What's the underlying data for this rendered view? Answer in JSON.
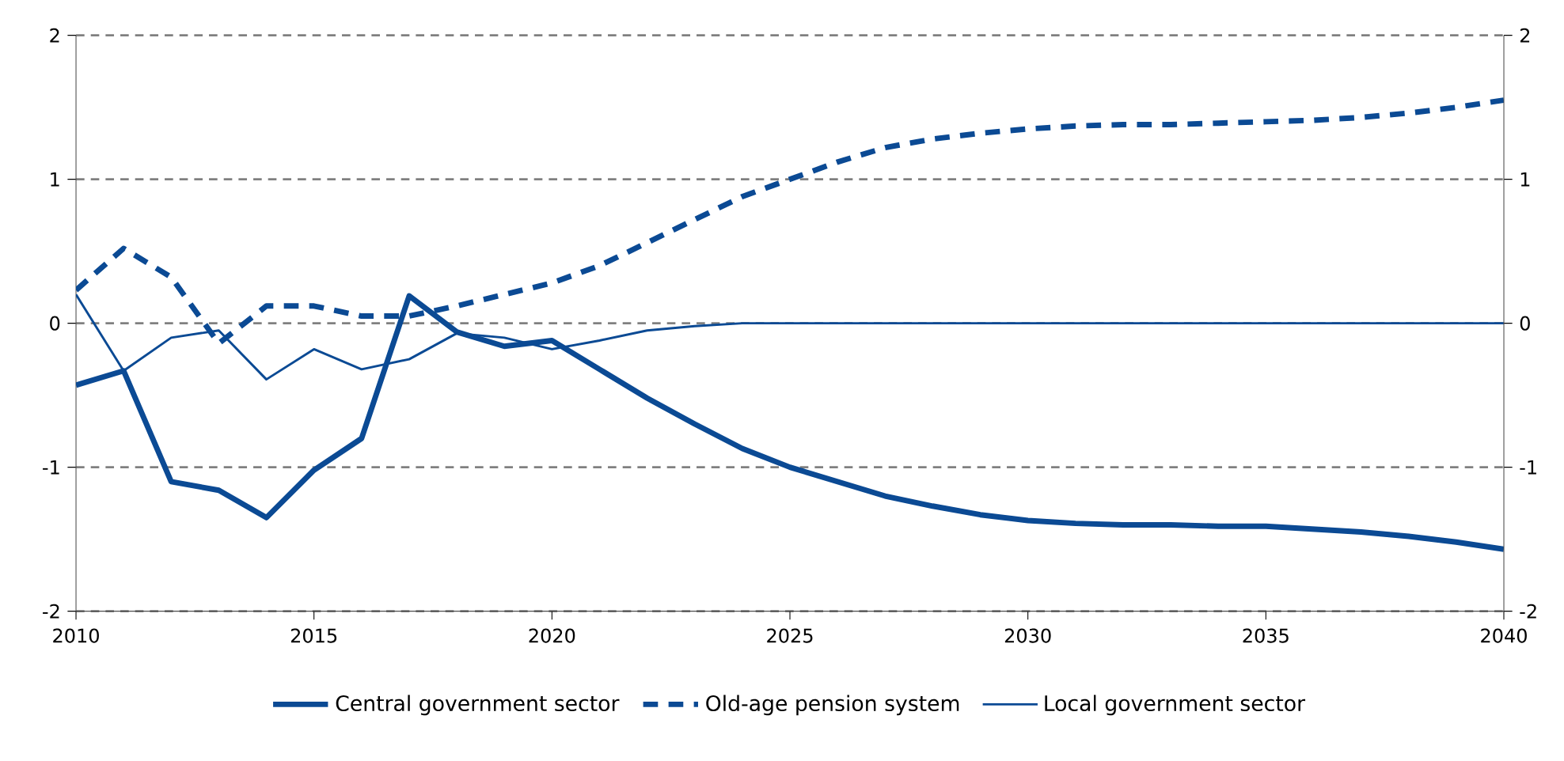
{
  "chart_data": {
    "type": "line",
    "x": [
      2010,
      2011,
      2012,
      2013,
      2014,
      2015,
      2016,
      2017,
      2018,
      2019,
      2020,
      2021,
      2022,
      2023,
      2024,
      2025,
      2026,
      2027,
      2028,
      2029,
      2030,
      2031,
      2032,
      2033,
      2034,
      2035,
      2036,
      2037,
      2038,
      2039,
      2040
    ],
    "series": [
      {
        "name": "Central government sector",
        "color": "#0b4a94",
        "line_style": "solid",
        "values": [
          -0.43,
          -0.33,
          -1.1,
          -1.16,
          -1.35,
          -1.02,
          -0.8,
          0.19,
          -0.06,
          -0.16,
          -0.12,
          -0.32,
          -0.52,
          -0.7,
          -0.87,
          -1.0,
          -1.1,
          -1.2,
          -1.27,
          -1.33,
          -1.37,
          -1.39,
          -1.4,
          -1.4,
          -1.41,
          -1.41,
          -1.43,
          -1.45,
          -1.48,
          -1.52,
          -1.57
        ]
      },
      {
        "name": "Old-age pension system",
        "color": "#0b4a94",
        "line_style": "dashed",
        "values": [
          0.23,
          0.52,
          0.32,
          -0.14,
          0.12,
          0.12,
          0.05,
          0.05,
          0.12,
          0.2,
          0.28,
          0.4,
          0.56,
          0.72,
          0.88,
          1.0,
          1.12,
          1.22,
          1.28,
          1.32,
          1.35,
          1.37,
          1.38,
          1.38,
          1.39,
          1.4,
          1.41,
          1.43,
          1.46,
          1.5,
          1.55
        ]
      },
      {
        "name": "Local government sector",
        "color": "#0b4a94",
        "line_style": "solid",
        "values": [
          0.2,
          -0.33,
          -0.1,
          -0.05,
          -0.39,
          -0.18,
          -0.32,
          -0.25,
          -0.07,
          -0.1,
          -0.18,
          -0.12,
          -0.05,
          -0.02,
          0,
          0,
          0,
          0,
          0,
          0,
          0,
          0,
          0,
          0,
          0,
          0,
          0,
          0,
          0,
          0,
          0
        ]
      }
    ],
    "xlim": [
      2010,
      2040
    ],
    "xticks": [
      2010,
      2015,
      2020,
      2025,
      2030,
      2035,
      2040
    ],
    "ylim": [
      -2,
      2
    ],
    "yticks": [
      -2,
      -1,
      0,
      1,
      2
    ],
    "y2lim": [
      -2,
      2
    ],
    "y2ticks": [
      -2,
      -1,
      0,
      1,
      2
    ],
    "grid": "y",
    "legend": "bottom",
    "marker": "none"
  }
}
